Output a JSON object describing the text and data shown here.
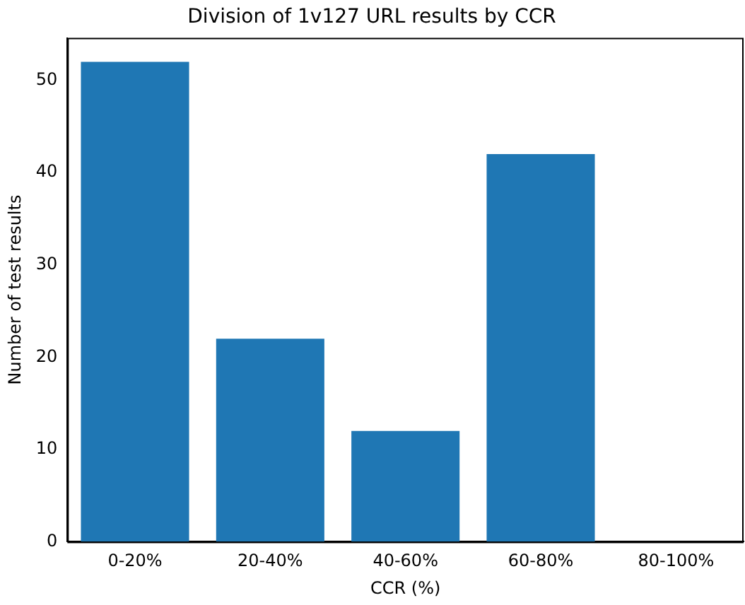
{
  "chart_data": {
    "type": "bar",
    "title": "Division of 1v127 URL results by CCR",
    "xlabel": "CCR (%)",
    "ylabel": "Number of test results",
    "categories": [
      "0-20%",
      "20-40%",
      "40-60%",
      "60-80%",
      "80-100%"
    ],
    "values": [
      52,
      22,
      12,
      42,
      0
    ],
    "color": "#1f77b4",
    "ylim": [
      0,
      54.6
    ],
    "yticks": [
      0,
      10,
      20,
      30,
      40,
      50
    ],
    "grid": false,
    "legend": false
  }
}
